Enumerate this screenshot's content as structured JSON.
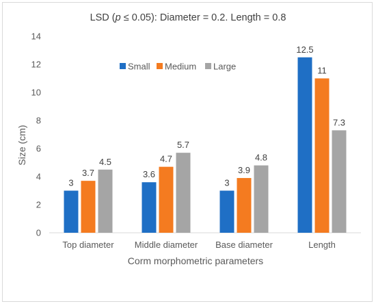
{
  "chart_data": {
    "type": "bar",
    "title_prefix": "LSD (",
    "title_p": "p",
    "title_suffix": " ≤ 0.05): Diameter = 0.2. Length = 0.8",
    "xlabel": "Corm morphometric parameters",
    "ylabel": "Size (cm)",
    "ylim": [
      0,
      14
    ],
    "yticks": [
      0,
      2,
      4,
      6,
      8,
      10,
      12,
      14
    ],
    "categories": [
      "Top diameter",
      "Middle diameter",
      "Base diameter",
      "Length"
    ],
    "series": [
      {
        "name": "Small",
        "color": "#1f6fc5",
        "values": [
          3,
          3.6,
          3,
          12.5
        ],
        "labels": [
          "3",
          "3.6",
          "3",
          "12.5"
        ]
      },
      {
        "name": "Medium",
        "color": "#f47b20",
        "values": [
          3.7,
          4.7,
          3.9,
          11
        ],
        "labels": [
          "3.7",
          "4.7",
          "3.9",
          "11"
        ]
      },
      {
        "name": "Large",
        "color": "#a5a5a5",
        "values": [
          4.5,
          5.7,
          4.8,
          7.3
        ],
        "labels": [
          "4.5",
          "5.7",
          "4.8",
          "7.3"
        ]
      }
    ],
    "legend": "top-center",
    "grid": false
  }
}
